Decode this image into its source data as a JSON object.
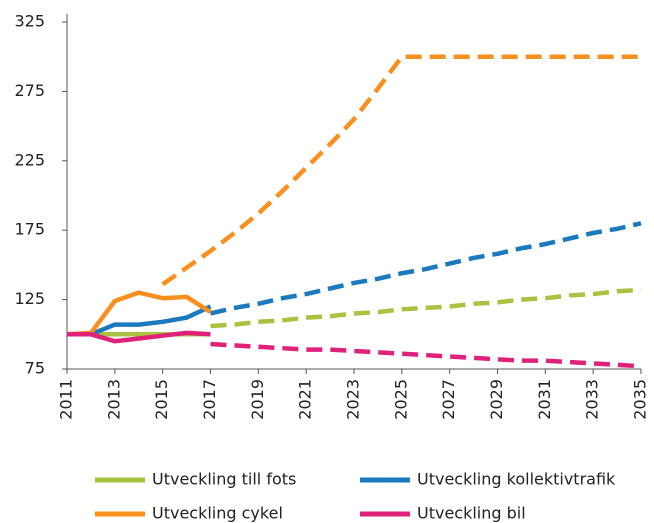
{
  "chart_data": {
    "type": "line",
    "x": [
      2011,
      2012,
      2013,
      2014,
      2015,
      2016,
      2017,
      2018,
      2019,
      2020,
      2021,
      2022,
      2023,
      2024,
      2025,
      2026,
      2027,
      2028,
      2029,
      2030,
      2031,
      2032,
      2033,
      2034,
      2035
    ],
    "xlim": [
      2011,
      2035
    ],
    "xticks": [
      2011,
      2013,
      2015,
      2017,
      2019,
      2021,
      2023,
      2025,
      2027,
      2029,
      2031,
      2033,
      2035
    ],
    "ylim": [
      75,
      325
    ],
    "yticks": [
      75,
      125,
      175,
      225,
      275,
      325
    ],
    "grid": false,
    "legend": "bottom",
    "series": [
      {
        "name": "Utveckling till fots",
        "color": "#a9c23f",
        "values": [
          100,
          100,
          100,
          100,
          100,
          100,
          100,
          null,
          null,
          null,
          null,
          null,
          null,
          null,
          null,
          null,
          null,
          null,
          null,
          null,
          null,
          null,
          null,
          null,
          null
        ],
        "forecast": [
          null,
          null,
          null,
          null,
          null,
          null,
          106,
          107,
          109,
          110,
          112,
          113,
          115,
          116,
          118,
          119,
          120,
          122,
          123,
          125,
          126,
          128,
          129,
          131,
          132
        ]
      },
      {
        "name": "Utveckling kollektivtrafik",
        "color": "#1b7abd",
        "values": [
          100,
          100,
          107,
          107,
          109,
          112,
          120,
          null,
          null,
          null,
          null,
          null,
          null,
          null,
          null,
          null,
          null,
          null,
          null,
          null,
          null,
          null,
          null,
          null,
          null
        ],
        "forecast": [
          null,
          null,
          null,
          null,
          null,
          null,
          115,
          119,
          122,
          126,
          129,
          133,
          137,
          140,
          144,
          147,
          151,
          155,
          158,
          162,
          165,
          169,
          173,
          176,
          180
        ]
      },
      {
        "name": "Utveckling cykel",
        "color": "#f7901e",
        "values": [
          100,
          101,
          124,
          130,
          126,
          127,
          116,
          null,
          null,
          null,
          null,
          null,
          null,
          null,
          null,
          null,
          null,
          null,
          null,
          null,
          null,
          null,
          null,
          null,
          null
        ],
        "forecast": [
          null,
          null,
          null,
          null,
          136,
          148,
          160,
          173,
          187,
          203,
          220,
          237,
          255,
          277,
          300,
          300,
          300,
          300,
          300,
          300,
          300,
          300,
          300,
          300,
          300
        ]
      },
      {
        "name": "Utveckling bil",
        "color": "#e0217a",
        "values": [
          100,
          100,
          95,
          97,
          99,
          101,
          100,
          null,
          null,
          null,
          null,
          null,
          null,
          null,
          null,
          null,
          null,
          null,
          null,
          null,
          null,
          null,
          null,
          null,
          null
        ],
        "forecast": [
          null,
          null,
          null,
          null,
          null,
          null,
          93,
          92,
          91,
          90,
          89,
          89,
          88,
          87,
          86,
          85,
          84,
          83,
          82,
          81,
          81,
          80,
          79,
          78,
          77
        ]
      }
    ]
  }
}
